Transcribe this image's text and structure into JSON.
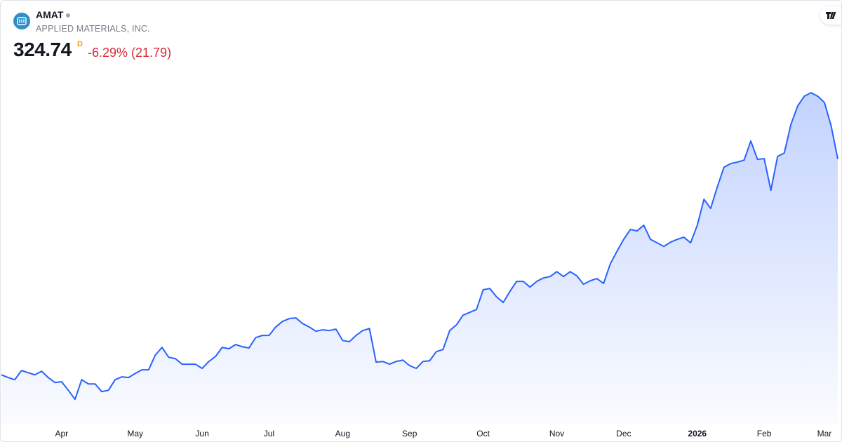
{
  "header": {
    "symbol": "AMAT",
    "company": "APPLIED MATERIALS, INC.",
    "price": "324.74",
    "interval": "D",
    "change": "-6.29% (21.79)"
  },
  "chart_data": {
    "type": "area",
    "ylim": [
      120,
      400
    ],
    "categories": [
      null,
      null,
      null,
      null,
      null,
      null,
      null,
      null,
      null,
      "Apr",
      null,
      null,
      null,
      null,
      null,
      null,
      null,
      null,
      null,
      null,
      "May",
      null,
      null,
      null,
      null,
      null,
      null,
      null,
      null,
      null,
      "Jun",
      null,
      null,
      null,
      null,
      null,
      null,
      null,
      null,
      null,
      "Jul",
      null,
      null,
      null,
      null,
      null,
      null,
      null,
      null,
      null,
      null,
      "Aug",
      null,
      null,
      null,
      null,
      null,
      null,
      null,
      null,
      null,
      "Sep",
      null,
      null,
      null,
      null,
      null,
      null,
      null,
      null,
      null,
      null,
      "Oct",
      null,
      null,
      null,
      null,
      null,
      null,
      null,
      null,
      null,
      null,
      "Nov",
      null,
      null,
      null,
      null,
      null,
      null,
      null,
      null,
      null,
      "Dec",
      null,
      null,
      null,
      null,
      null,
      null,
      null,
      null,
      null,
      null,
      "2026",
      null,
      null,
      null,
      null,
      null,
      null,
      null,
      null,
      null,
      "Feb",
      null,
      null,
      null,
      null,
      null,
      null,
      null,
      null,
      "Mar",
      null,
      null
    ],
    "series": [
      {
        "color": "#2962ff",
        "values": [
          156.5,
          154.4,
          152.7,
          159.8,
          158.2,
          156.5,
          159.3,
          154.4,
          150.5,
          151.1,
          144.5,
          137.4,
          152.7,
          149.4,
          149.4,
          143.4,
          144.5,
          152.7,
          154.9,
          154.4,
          157.6,
          160.4,
          160.4,
          171.9,
          177.9,
          170.2,
          169.1,
          164.8,
          164.8,
          164.8,
          161.5,
          166.9,
          170.8,
          177.9,
          176.8,
          180.1,
          178.4,
          177.4,
          185.5,
          187.2,
          187.2,
          193.8,
          198.1,
          200.3,
          200.9,
          196.5,
          193.8,
          190.5,
          191.6,
          191.0,
          192.1,
          183.3,
          182.3,
          187.2,
          191.0,
          192.6,
          166.4,
          166.9,
          164.8,
          166.9,
          168.0,
          163.7,
          161.5,
          166.9,
          167.5,
          174.6,
          176.2,
          191.0,
          195.4,
          203.0,
          205.2,
          207.4,
          222.8,
          223.8,
          217.3,
          212.9,
          221.6,
          229.3,
          229.3,
          224.9,
          229.3,
          232.0,
          233.1,
          236.9,
          233.1,
          236.9,
          233.7,
          227.1,
          229.8,
          231.5,
          227.7,
          243.0,
          252.8,
          262.1,
          269.8,
          268.7,
          273.1,
          262.1,
          259.4,
          256.6,
          259.9,
          262.1,
          263.8,
          259.4,
          273.1,
          293.3,
          286.2,
          303.1,
          318.4,
          321.2,
          322.3,
          323.9,
          338.7,
          324.5,
          325.0,
          300.4,
          326.7,
          329.4,
          351.8,
          366.0,
          373.7,
          376.4,
          373.7,
          368.8,
          350.7,
          324.74
        ]
      }
    ]
  }
}
